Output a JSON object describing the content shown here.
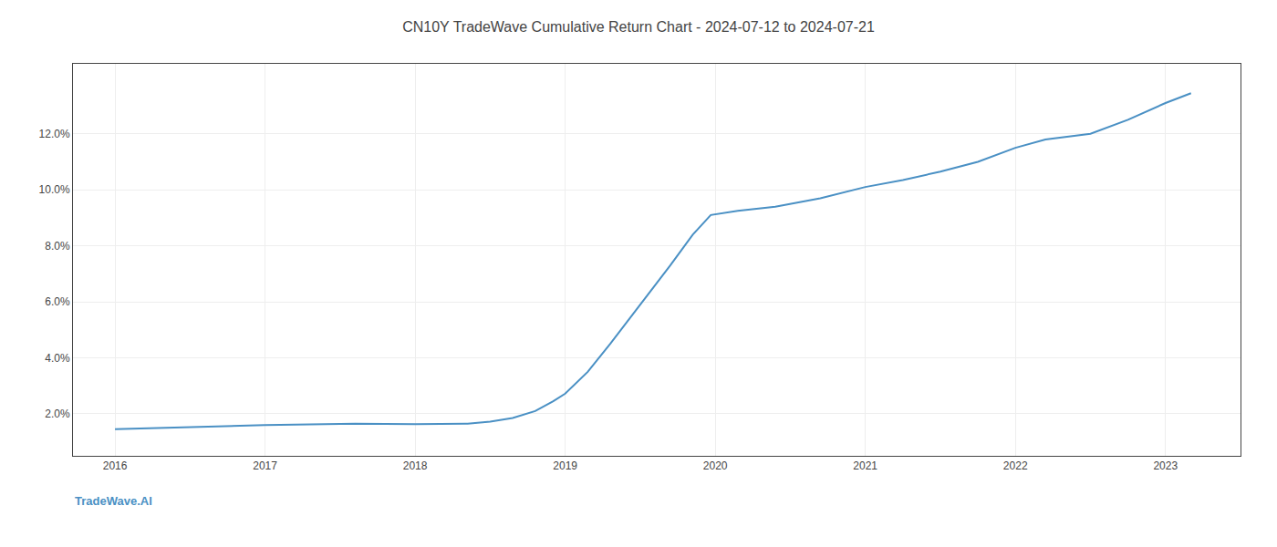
{
  "chart_data": {
    "type": "line",
    "title": "CN10Y TradeWave Cumulative Return Chart - 2024-07-12 to 2024-07-21",
    "annotations": [
      {
        "text": "TradeWave.AI",
        "color": "#4a90c4"
      }
    ],
    "x": [
      2016.0,
      2016.3,
      2016.6,
      2017.0,
      2017.3,
      2017.6,
      2018.0,
      2018.2,
      2018.35,
      2018.5,
      2018.65,
      2018.8,
      2018.92,
      2019.0,
      2019.15,
      2019.3,
      2019.5,
      2019.7,
      2019.85,
      2019.97,
      2020.15,
      2020.4,
      2020.7,
      2021.0,
      2021.25,
      2021.5,
      2021.75,
      2022.0,
      2022.2,
      2022.5,
      2022.75,
      2023.0,
      2023.17
    ],
    "values": [
      1.45,
      1.5,
      1.55,
      1.6,
      1.62,
      1.65,
      1.63,
      1.63,
      1.65,
      1.72,
      1.85,
      2.1,
      2.45,
      2.72,
      3.5,
      4.5,
      5.9,
      7.3,
      8.4,
      9.1,
      9.25,
      9.4,
      9.7,
      10.1,
      10.35,
      10.65,
      11.0,
      11.5,
      11.8,
      12.0,
      12.5,
      13.1,
      13.45
    ],
    "color": "#4a90c4",
    "xlim": [
      2015.72,
      2023.5
    ],
    "xticks": [
      2016,
      2017,
      2018,
      2019,
      2020,
      2021,
      2022,
      2023
    ],
    "ylim": [
      0.5,
      14.5
    ],
    "yticks": [
      {
        "value": 2.0,
        "label": "2.0%"
      },
      {
        "value": 4.0,
        "label": "4.0%"
      },
      {
        "value": 6.0,
        "label": "6.0%"
      },
      {
        "value": 8.0,
        "label": "8.0%"
      },
      {
        "value": 10.0,
        "label": "10.0%"
      },
      {
        "value": 12.0,
        "label": "12.0%"
      }
    ],
    "grid": true
  }
}
